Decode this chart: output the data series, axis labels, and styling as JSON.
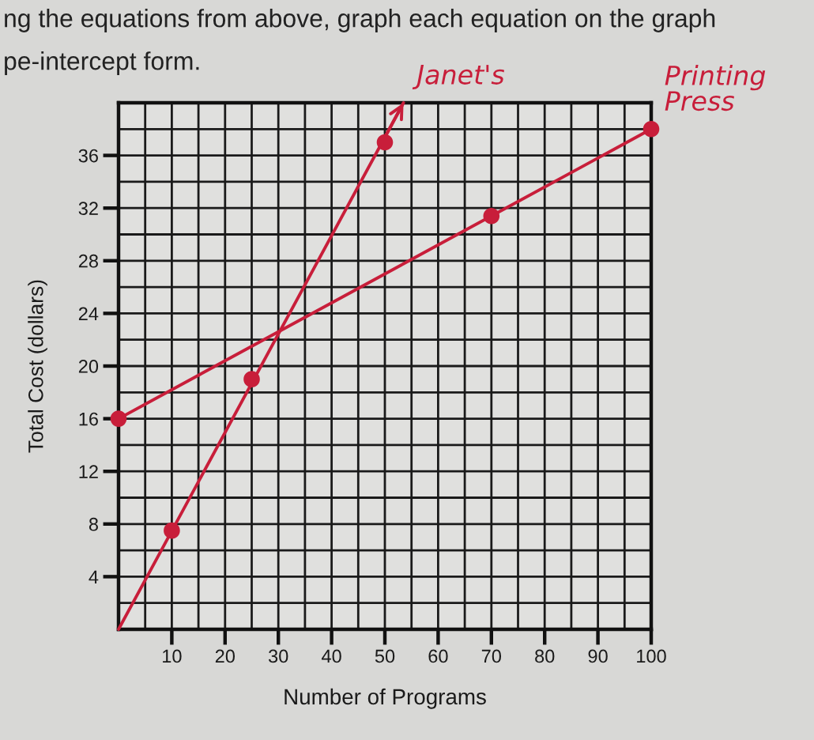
{
  "chart_data": {
    "type": "line",
    "xlabel": "Number of Programs",
    "ylabel": "Total Cost (dollars)",
    "annotations": [
      "ng the equations from above, graph each equation on the graph",
      "pe-intercept form."
    ],
    "xlim": [
      0,
      100
    ],
    "ylim": [
      0,
      40
    ],
    "xticks": [
      {
        "value": 0,
        "label": null
      },
      {
        "value": 5,
        "label": null
      },
      10,
      {
        "value": 15,
        "label": null
      },
      20,
      {
        "value": 25,
        "label": null
      },
      30,
      {
        "value": 35,
        "label": null
      },
      40,
      {
        "value": 45,
        "label": null
      },
      50,
      {
        "value": 55,
        "label": null
      },
      60,
      {
        "value": 65,
        "label": null
      },
      70,
      {
        "value": 75,
        "label": null
      },
      80,
      {
        "value": 85,
        "label": null
      },
      90,
      {
        "value": 95,
        "label": null
      },
      100
    ],
    "yticks": [
      {
        "value": 0,
        "label": null
      },
      {
        "value": 2,
        "label": null
      },
      4,
      {
        "value": 6,
        "label": null
      },
      8,
      {
        "value": 10,
        "label": null
      },
      12,
      {
        "value": 14,
        "label": null
      },
      16,
      {
        "value": 18,
        "label": null
      },
      20,
      {
        "value": 22,
        "label": null
      },
      24,
      {
        "value": 26,
        "label": null
      },
      28,
      {
        "value": 30,
        "label": null
      },
      32,
      {
        "value": 34,
        "label": null
      },
      36,
      {
        "value": 38,
        "label": null
      },
      {
        "value": 40,
        "label": null
      }
    ],
    "grid": true,
    "series": [
      {
        "name": "Janet's",
        "color": "#c81e3a",
        "x": [
          0,
          53.5
        ],
        "values": [
          0,
          40
        ]
      },
      {
        "type": "scatter",
        "marker": "circle",
        "color": "#c81e3a",
        "x": [
          10,
          25,
          50
        ],
        "values": [
          7.5,
          19,
          37
        ]
      },
      {
        "name": "Printing Press",
        "color": "#c81e3a",
        "x": [
          0,
          100
        ],
        "values": [
          16,
          38
        ]
      },
      {
        "type": "scatter",
        "marker": "circle",
        "color": "#c81e3a",
        "x": [
          0,
          70,
          100
        ],
        "values": [
          16,
          31.4,
          38
        ]
      }
    ]
  }
}
